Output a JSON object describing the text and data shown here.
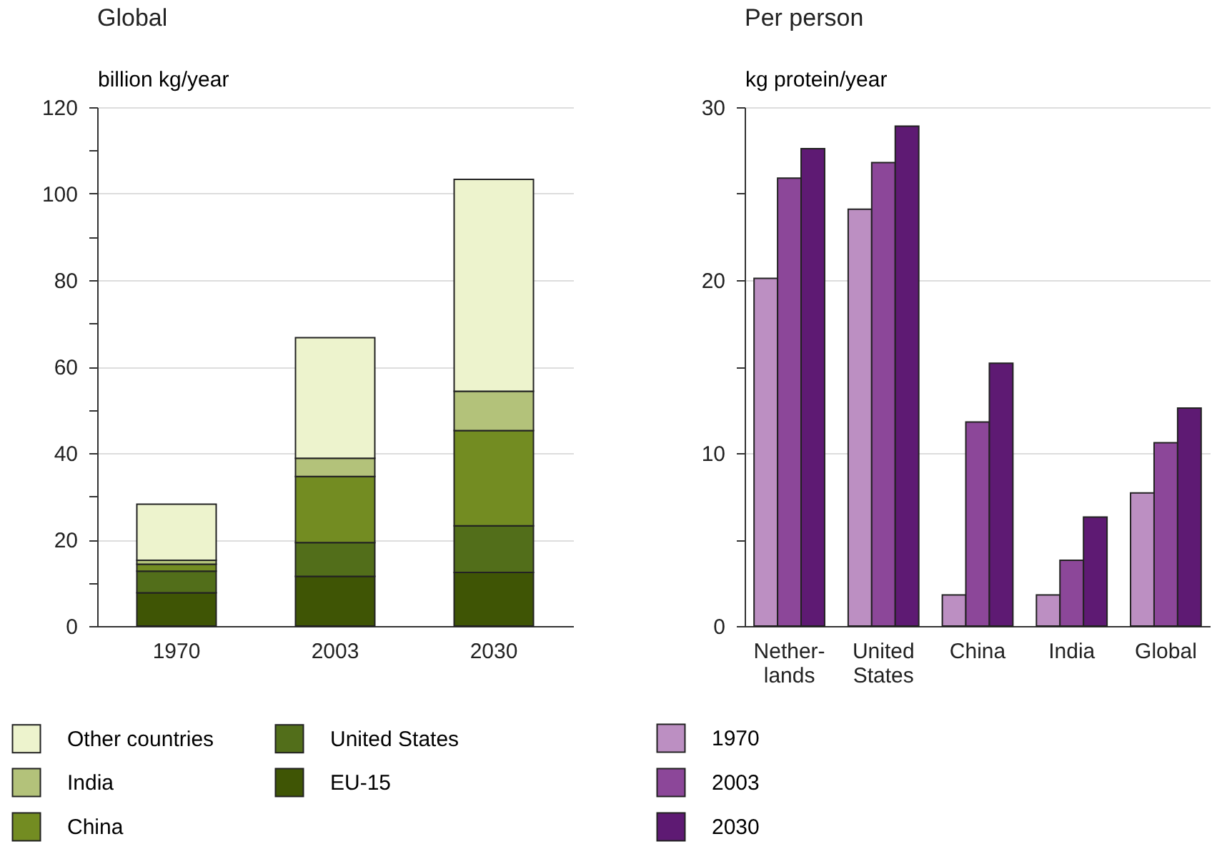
{
  "chart_data": [
    {
      "type": "bar",
      "title": "Global",
      "ylabel": "billion kg/year",
      "stacked": true,
      "categories": [
        "1970",
        "2003",
        "2030"
      ],
      "series": [
        {
          "name": "EU-15",
          "color": "#3f5505",
          "values": [
            7.7,
            11.5,
            12.4
          ]
        },
        {
          "name": "United States",
          "color": "#526e1a",
          "values": [
            5.0,
            7.8,
            10.8
          ]
        },
        {
          "name": "China",
          "color": "#738c22",
          "values": [
            1.6,
            15.3,
            22.0
          ]
        },
        {
          "name": "India",
          "color": "#b3c27a",
          "values": [
            0.9,
            4.2,
            9.1
          ]
        },
        {
          "name": "Other countries",
          "color": "#edf3cd",
          "values": [
            13.0,
            27.9,
            49.0
          ]
        }
      ],
      "ylim": [
        0,
        120
      ],
      "yticks": [
        0,
        {
          "value": 10,
          "label": null
        },
        20,
        {
          "value": 30,
          "label": null
        },
        40,
        {
          "value": 50,
          "label": null
        },
        60,
        {
          "value": 70,
          "label": null
        },
        80,
        {
          "value": 90,
          "label": null
        },
        100,
        {
          "value": 110,
          "label": null
        },
        120
      ],
      "grid": "y",
      "legend": "bottom"
    },
    {
      "type": "bar",
      "title": "Per person",
      "ylabel": "kg protein/year",
      "categories": [
        "Nether-\nlands",
        "United\nStates",
        "China",
        "India",
        "Global"
      ],
      "series": [
        {
          "name": "1970",
          "color": "#bc8fc2",
          "values": [
            20.1,
            24.1,
            1.8,
            1.8,
            7.7
          ]
        },
        {
          "name": "2003",
          "color": "#8c4799",
          "values": [
            25.9,
            26.8,
            11.8,
            3.8,
            10.6
          ]
        },
        {
          "name": "2030",
          "color": "#5e1a73",
          "values": [
            27.6,
            28.9,
            15.2,
            6.3,
            12.6
          ]
        }
      ],
      "ylim": [
        0,
        30
      ],
      "yticks": [
        0,
        {
          "value": 5,
          "label": null
        },
        10,
        {
          "value": 15,
          "label": null
        },
        20,
        {
          "value": 25,
          "label": null
        },
        30
      ],
      "grid": "y",
      "legend": "bottom"
    }
  ]
}
